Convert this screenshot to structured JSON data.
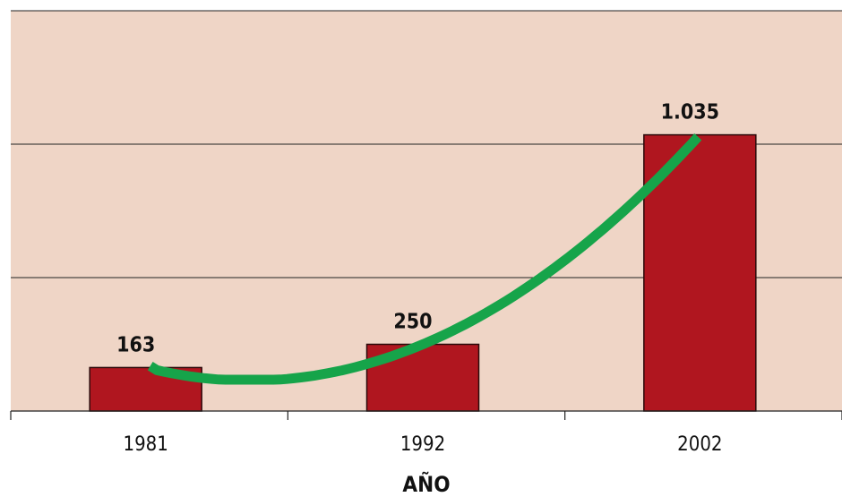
{
  "chart_data": {
    "type": "bar",
    "categories": [
      "1981",
      "1992",
      "2002"
    ],
    "values": [
      163,
      250,
      1035
    ],
    "data_labels": [
      "163",
      "250",
      "1.035"
    ],
    "title": "",
    "xlabel": "AÑO",
    "ylabel": "",
    "ylim": [
      0,
      1500
    ],
    "grid": true,
    "legend": "none",
    "trend_line": true
  },
  "colors": {
    "plot_background": "#efd5c6",
    "bar_fill": "#b0161f",
    "bar_stroke": "#2a0a0a",
    "trend_line": "#16a44a",
    "grid": "#222222"
  }
}
